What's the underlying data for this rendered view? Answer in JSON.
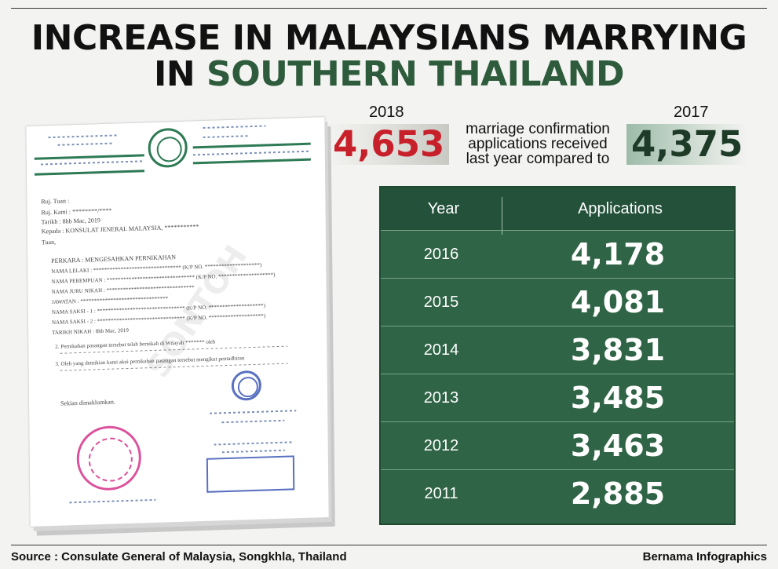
{
  "title": {
    "line1": "INCREASE IN MALAYSIANS MARRYING",
    "line2_prefix": "IN ",
    "line2_highlight": "SOUTHERN THAILAND"
  },
  "comparison": {
    "year_a": "2018",
    "value_a": "4,653",
    "text": [
      "marriage confirmation",
      "applications received",
      "last year compared to"
    ],
    "year_b": "2017",
    "value_b": "4,375"
  },
  "document": {
    "lines": [
      "Ruj. Tuan :",
      "Ruj. Kami : ********/****",
      "Tarikh : 8hb Mac, 2019",
      "Kepada : KONSULAT JENERAL MALAYSIA, ***********",
      "Tuan,",
      "PERKARA      : MENGESAHKAN PERNIKAHAN",
      "NAMA LELAKI       : ******************************** (K/P NO. ********************)",
      "NAMA PEREMPUAN    : ******************************** (K/P NO. ********************)",
      "NAMA JURU NIKAH   : ********************************",
      "JAWATAN           : ********************************",
      "NAMA SAKSI - 1    : ******************************** (K/P NO. ********************)",
      "NAMA SAKSI - 2    : ******************************** (K/P NO. ********************)",
      "TARIKH NIKAH      : 8hb Mac, 2019",
      "2. Pernikahan pasangan tersebut telah bernikah di Wilayah ******* oleh",
      "3. Oleh yang demikian kami akui pernikahan pasangan tersebut mengikut pentadbiran",
      "Sekian dimaklumkan."
    ],
    "watermark": "SONTOH"
  },
  "table": {
    "headers": [
      "Year",
      "Applications"
    ],
    "rows": [
      {
        "year": "2016",
        "applications": "4,178"
      },
      {
        "year": "2015",
        "applications": "4,081"
      },
      {
        "year": "2014",
        "applications": "3,831"
      },
      {
        "year": "2013",
        "applications": "3,485"
      },
      {
        "year": "2012",
        "applications": "3,463"
      },
      {
        "year": "2011",
        "applications": "2,885"
      }
    ]
  },
  "chart_data": {
    "type": "table",
    "title": "INCREASE IN MALAYSIANS MARRYING IN SOUTHERN THAILAND",
    "columns": [
      "Year",
      "Applications"
    ],
    "x": [
      "2018",
      "2017",
      "2016",
      "2015",
      "2014",
      "2013",
      "2012",
      "2011"
    ],
    "values": [
      4653,
      4375,
      4178,
      4081,
      3831,
      3485,
      3463,
      2885
    ]
  },
  "footer": {
    "source": "Source : Consulate General of Malaysia, Songkhla, Thailand",
    "credit": "Bernama Infographics"
  },
  "colors": {
    "green": "#2d5b3c",
    "table_bg": "#2f6446",
    "red": "#c8202a"
  }
}
